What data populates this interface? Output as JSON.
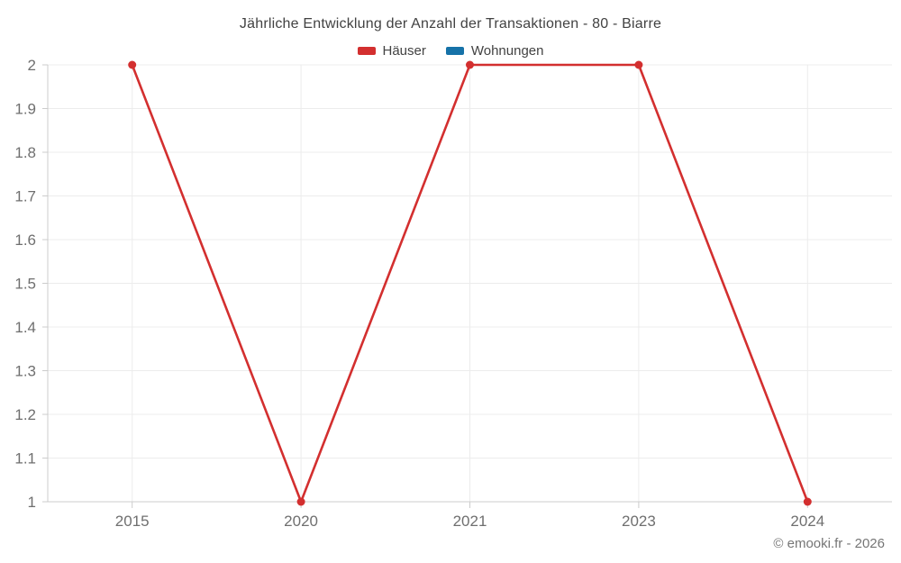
{
  "title": "Jährliche Entwicklung der Anzahl der Transaktionen - 80 - Biarre",
  "legend": {
    "items": [
      {
        "label": "Häuser",
        "color": "#d32f2f"
      },
      {
        "label": "Wohnungen",
        "color": "#1672a8"
      }
    ]
  },
  "footer": {
    "copyright": "© emooki.fr - 2026"
  },
  "colors": {
    "background": "#ffffff",
    "grid": "#ececec",
    "axis": "#cccccc",
    "tick_label": "#6f6f6f",
    "title_text": "#424242"
  },
  "chart_data": {
    "type": "line",
    "title": "Jährliche Entwicklung der Anzahl der Transaktionen - 80 - Biarre",
    "categories": [
      "2015",
      "2020",
      "2021",
      "2023",
      "2024"
    ],
    "series": [
      {
        "name": "Häuser",
        "color": "#d32f2f",
        "values": [
          2,
          1,
          2,
          2,
          1
        ]
      },
      {
        "name": "Wohnungen",
        "color": "#1672a8",
        "values": []
      }
    ],
    "xlabel": "",
    "ylabel": "",
    "ylim": [
      1,
      2
    ],
    "y_ticks": [
      "1",
      "1.1",
      "1.2",
      "1.3",
      "1.4",
      "1.5",
      "1.6",
      "1.7",
      "1.8",
      "1.9",
      "2"
    ],
    "grid": true,
    "legend_position": "top",
    "marker": "circle"
  }
}
